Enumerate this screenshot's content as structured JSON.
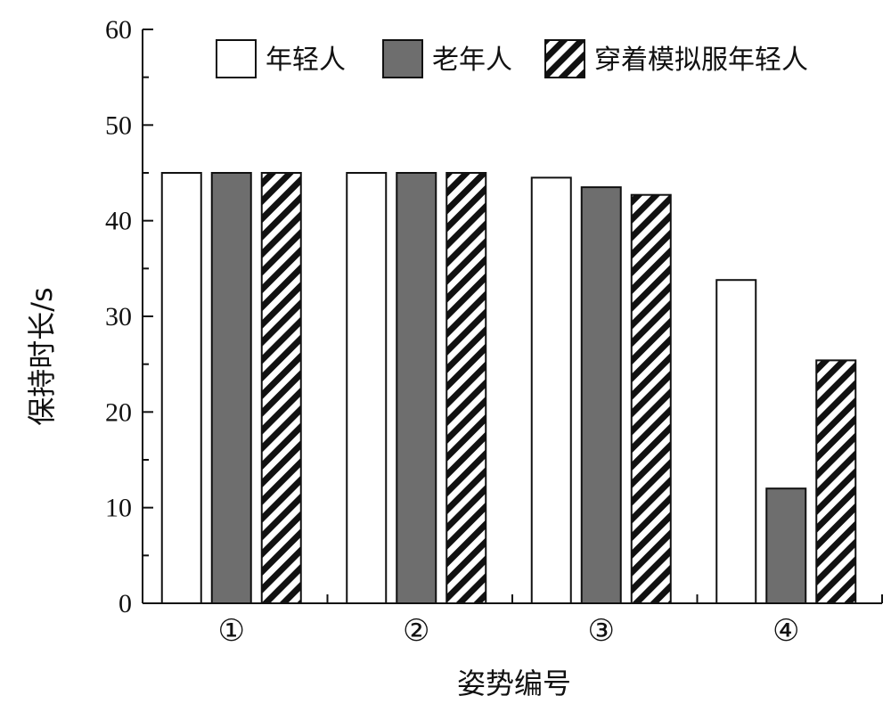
{
  "chart_data": {
    "type": "bar",
    "title": "",
    "xlabel": "姿势编号",
    "ylabel": "保持时长/s",
    "ylim": [
      0,
      60
    ],
    "yticks": [
      0,
      10,
      20,
      30,
      40,
      50,
      60
    ],
    "categories": [
      "①",
      "②",
      "③",
      "④"
    ],
    "legend_position": "top-right",
    "grid": false,
    "series": [
      {
        "name": "年轻人",
        "values": [
          45,
          45,
          44.5,
          33.8
        ],
        "fill": "white"
      },
      {
        "name": "老年人",
        "values": [
          45,
          45,
          43.5,
          12
        ],
        "fill": "gray",
        "color": "#6e6e6e"
      },
      {
        "name": "穿着模拟服年轻人",
        "values": [
          45,
          45,
          42.7,
          25.4
        ],
        "fill": "hatched"
      }
    ]
  }
}
